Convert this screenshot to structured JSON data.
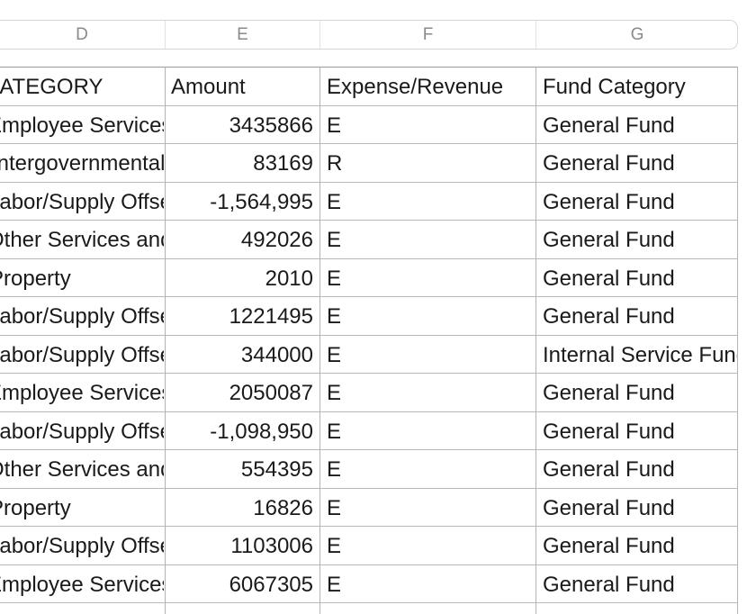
{
  "column_letters": [
    "D",
    "E",
    "F",
    "G"
  ],
  "headers": {
    "category": "CATEGORY",
    "amount": "Amount",
    "expense_revenue": "Expense/Revenue",
    "fund_category": "Fund Category"
  },
  "rows": [
    {
      "category": "Employee Services",
      "amount": "3435866",
      "type": "E",
      "fund": "General Fund"
    },
    {
      "category": "Intergovernmental",
      "amount": "83169",
      "type": "R",
      "fund": "General Fund"
    },
    {
      "category": "Labor/Supply Offset",
      "amount": "-1,564,995",
      "type": "E",
      "fund": "General Fund"
    },
    {
      "category": "Other Services and Charges",
      "amount": "492026",
      "type": "E",
      "fund": "General Fund"
    },
    {
      "category": "Property",
      "amount": "2010",
      "type": "E",
      "fund": "General Fund"
    },
    {
      "category": "Labor/Supply Offset",
      "amount": "1221495",
      "type": "E",
      "fund": "General Fund"
    },
    {
      "category": "Labor/Supply Offset",
      "amount": "344000",
      "type": "E",
      "fund": "Internal Service Fund"
    },
    {
      "category": "Employee Services",
      "amount": "2050087",
      "type": "E",
      "fund": "General Fund"
    },
    {
      "category": "Labor/Supply Offset",
      "amount": "-1,098,950",
      "type": "E",
      "fund": "General Fund"
    },
    {
      "category": "Other Services and Charges",
      "amount": "554395",
      "type": "E",
      "fund": "General Fund"
    },
    {
      "category": "Property",
      "amount": "16826",
      "type": "E",
      "fund": "General Fund"
    },
    {
      "category": "Labor/Supply Offset",
      "amount": "1103006",
      "type": "E",
      "fund": "General Fund"
    },
    {
      "category": "Employee Services",
      "amount": "6067305",
      "type": "E",
      "fund": "General Fund"
    }
  ]
}
